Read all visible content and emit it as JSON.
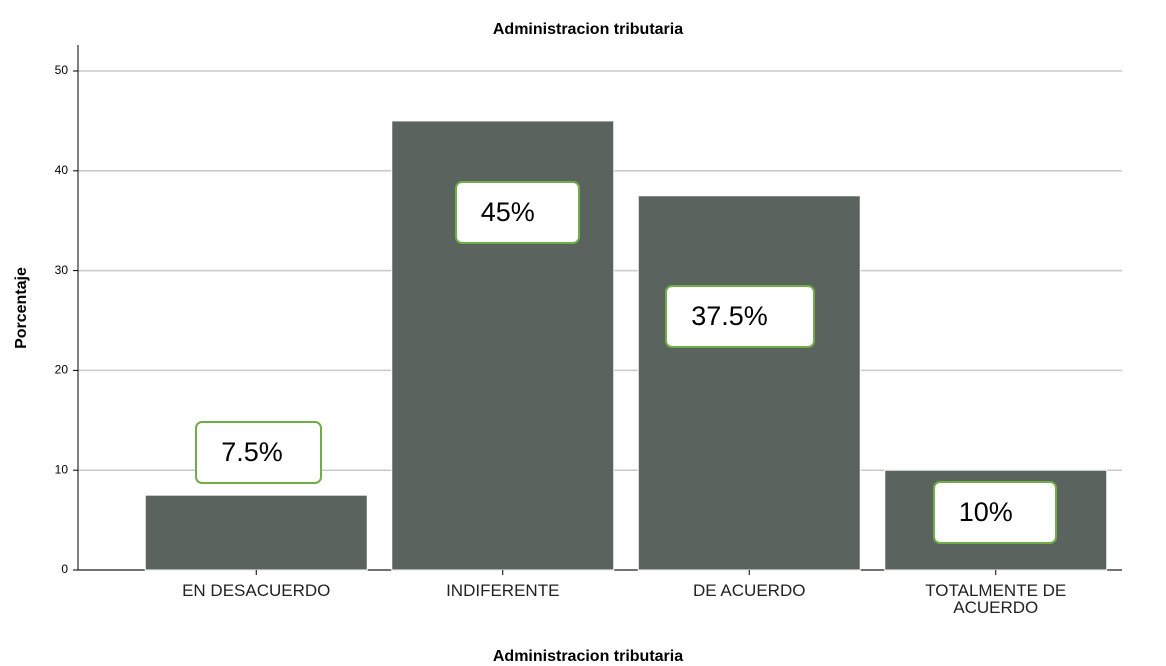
{
  "chart_data": {
    "type": "bar",
    "title": "Administracion tributaria",
    "x_label": "Administracion tributaria",
    "y_label": "Porcentaje",
    "categories": [
      "EN DESACUERDO",
      "INDIFERENTE",
      "DE ACUERDO",
      "TOTALMENTE DE ACUERDO"
    ],
    "values": [
      7.5,
      45,
      37.5,
      10
    ],
    "value_labels": [
      "7.5%",
      "45%",
      "37.5%",
      "10%"
    ],
    "color": "#5a635d",
    "ylim": [
      0,
      50
    ],
    "yticks": [
      0,
      10,
      20,
      30,
      40,
      50
    ],
    "grid": true
  }
}
